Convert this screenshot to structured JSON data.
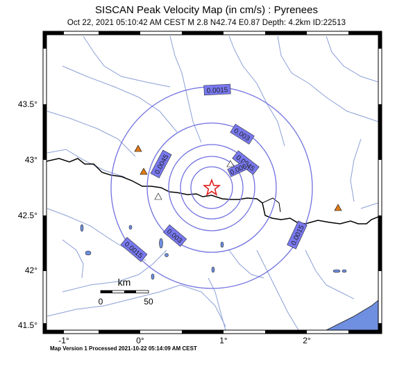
{
  "header": {
    "title": "SISCAN Peak Velocity Map (in cm/s) : Pyrenees",
    "subtitle": "Oct 22, 2021 05:10:42 AM CEST   M 2.8   N42.74 E0.87   Depth: 4.2km   ID:22513"
  },
  "map": {
    "y_ticks": [
      "43.5°",
      "43°",
      "42.5°",
      "42°",
      "41.5°"
    ],
    "x_ticks": [
      "-1°",
      "0°",
      "1°",
      "2°"
    ],
    "contour_labels": [
      "0.0015",
      "0.003",
      "0.0045",
      "0.0045",
      "0.006",
      "0.003",
      "0.0015",
      "0.0015"
    ],
    "epicenter": {
      "lat": 42.74,
      "lon": 0.87
    },
    "colors": {
      "contour": "#7070e0",
      "label_bg": "#7878f0",
      "rivers": "#8a9fd6",
      "border": "#000000",
      "station": "#e07b1a",
      "epicenter": "#e02020",
      "water": "#6f8fe0"
    }
  },
  "scale_bar": {
    "title": "km",
    "start": "0",
    "end": "50"
  },
  "footer": {
    "text": "Map Version 1 Processed 2021-10-22 05:14:09 AM CEST"
  }
}
